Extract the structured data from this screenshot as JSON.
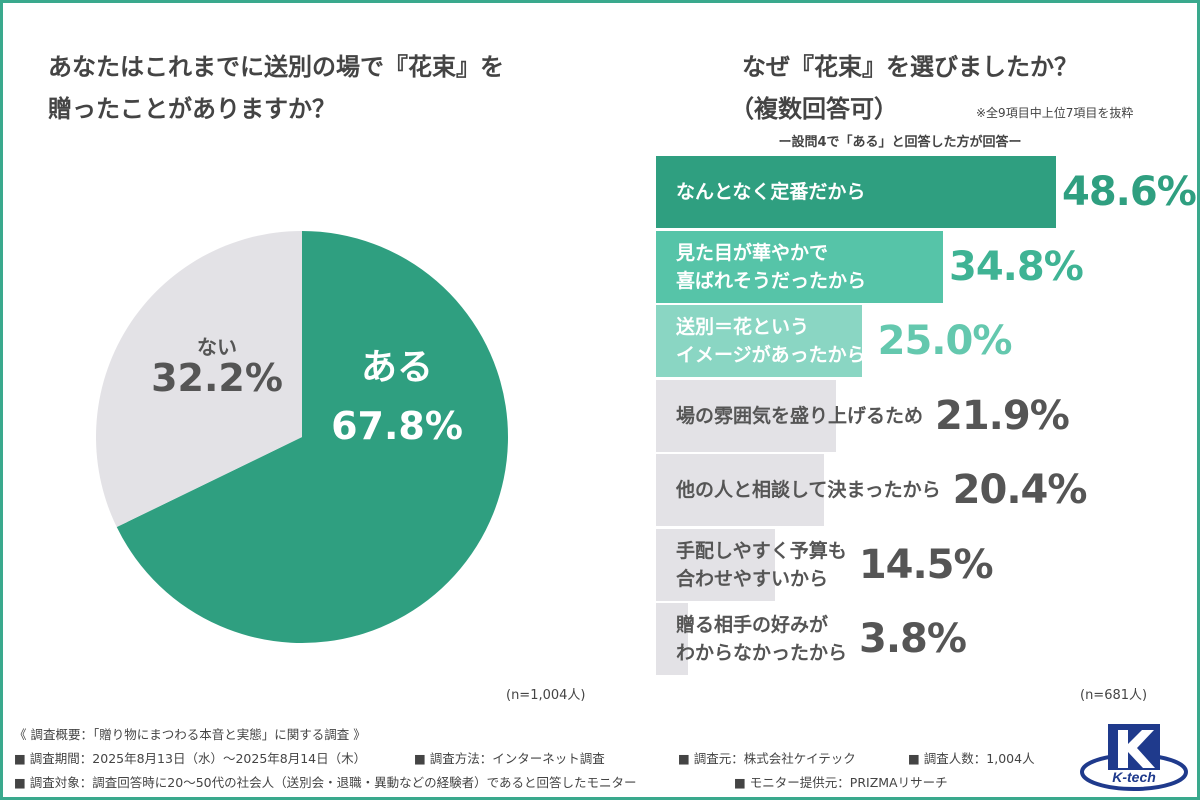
{
  "left": {
    "title_line1": "あなたはこれまでに送別の場で『花束』を",
    "title_line2": "贈ったことがありますか？",
    "n": "(n=1,004人)"
  },
  "right": {
    "title_line1": "なぜ『花束』を選びましたか？",
    "title_line2": "（複数回答可）",
    "note": "※全9項目中上位7項目を抜粋",
    "subtitle": "ー設問4で「ある」と回答した方が回答ー",
    "n": "(n=681人)"
  },
  "chart_data": [
    {
      "type": "pie",
      "title": "あなたはこれまでに送別の場で『花束』を贈ったことがありますか？",
      "slices": [
        {
          "label": "ある",
          "value": 67.8,
          "value_label": "67.8%",
          "color": "#2f9f80"
        },
        {
          "label": "ない",
          "value": 32.2,
          "value_label": "32.2%",
          "color": "#e3e2e6"
        }
      ]
    },
    {
      "type": "bar",
      "orientation": "horizontal",
      "title": "なぜ『花束』を選びましたか？（複数回答可）",
      "xlim": [
        0,
        50
      ],
      "bars": [
        {
          "label": "なんとなく定番だから",
          "value": 48.6,
          "value_label": "48.6%",
          "color": "#2f9f80",
          "value_color": "#2f9f80",
          "label_color": "#ffffff"
        },
        {
          "label": "見た目が華やかで\n喜ばれそうだったから",
          "value": 34.8,
          "value_label": "34.8%",
          "color": "#56c4a8",
          "value_color": "#3fb394",
          "label_color": "#ffffff"
        },
        {
          "label": "送別＝花という\nイメージがあったから",
          "value": 25.0,
          "value_label": "25.0%",
          "color": "#8ad6c3",
          "value_color": "#64c8ae",
          "label_color": "#ffffff"
        },
        {
          "label": "場の雰囲気を盛り上げるため",
          "value": 21.9,
          "value_label": "21.9%",
          "color": "#e3e2e6",
          "value_color": "#555555",
          "label_color": "#555555"
        },
        {
          "label": "他の人と相談して決まったから",
          "value": 20.4,
          "value_label": "20.4%",
          "color": "#e3e2e6",
          "value_color": "#555555",
          "label_color": "#555555"
        },
        {
          "label": "手配しやすく予算も\n合わせやすいから",
          "value": 14.5,
          "value_label": "14.5%",
          "color": "#e3e2e6",
          "value_color": "#555555",
          "label_color": "#555555"
        },
        {
          "label": "贈る相手の好みが\nわからなかったから",
          "value": 3.8,
          "value_label": "3.8%",
          "color": "#e3e2e6",
          "value_color": "#555555",
          "label_color": "#555555"
        }
      ]
    }
  ],
  "footer": {
    "line1": "《 調査概要：「贈り物にまつわる本音と実態」に関する調査 》",
    "period": "■ 調査期間：2025年8月13日（水）〜2025年8月14日（木）",
    "method": "■ 調査方法：インターネット調査",
    "source": "■ 調査元：株式会社ケイテック",
    "count": "■ 調査人数：1,004人",
    "target": "■ 調査対象：調査回答時に20〜50代の社会人（送別会・退職・異動などの経験者）であると回答したモニター",
    "provider": "■ モニター提供元：PRIZMAリサーチ"
  },
  "logo": {
    "text": "K-tech",
    "color": "#1f3a8c"
  }
}
